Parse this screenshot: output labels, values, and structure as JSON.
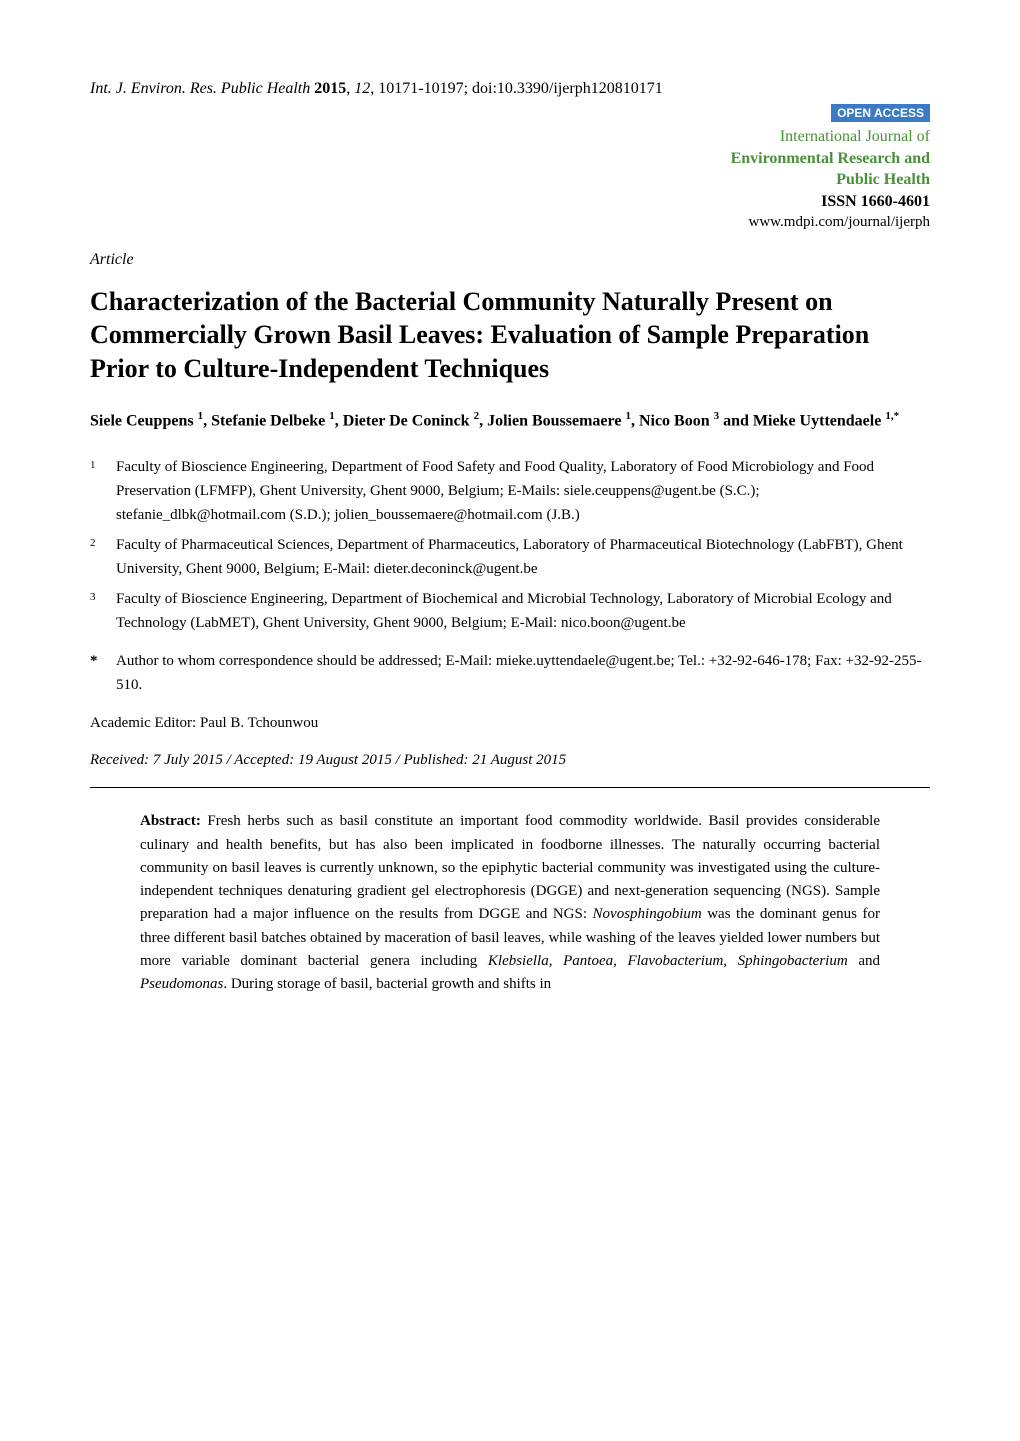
{
  "header": {
    "journal_abbrev": "Int. J. Environ. Res. Public Health",
    "year": "2015",
    "volume": "12",
    "pages": "10171-10197",
    "doi": "doi:10.3390/ijerph120810171"
  },
  "open_access_label": "OPEN ACCESS",
  "journal": {
    "line1": "International Journal of",
    "line2": "Environmental Research and",
    "line3": "Public Health",
    "issn": "ISSN 1660-4601",
    "url": "www.mdpi.com/journal/ijerph"
  },
  "article_label": "Article",
  "title": "Characterization of the Bacterial Community Naturally Present on Commercially Grown Basil Leaves: Evaluation of Sample Preparation Prior to Culture-Independent Techniques",
  "authors": {
    "a1_name": "Siele Ceuppens ",
    "a1_sup": "1",
    "a2_name": ", Stefanie Delbeke ",
    "a2_sup": "1",
    "a3_name": ", Dieter De Coninck ",
    "a3_sup": "2",
    "a4_name": ", Jolien Boussemaere ",
    "a4_sup": "1",
    "a5_name": ", Nico Boon ",
    "a5_sup": "3",
    "a6_prefix": " and ",
    "a6_name": "Mieke Uyttendaele ",
    "a6_sup": "1,*"
  },
  "affiliations": [
    {
      "num": "1",
      "text": "Faculty of Bioscience Engineering, Department of Food Safety and Food Quality, Laboratory of Food Microbiology and Food Preservation (LFMFP), Ghent University, Ghent 9000, Belgium; E-Mails: siele.ceuppens@ugent.be (S.C.); stefanie_dlbk@hotmail.com (S.D.); jolien_boussemaere@hotmail.com (J.B.)"
    },
    {
      "num": "2",
      "text": "Faculty of Pharmaceutical Sciences, Department of Pharmaceutics, Laboratory of Pharmaceutical Biotechnology (LabFBT), Ghent University, Ghent 9000, Belgium; E-Mail: dieter.deconinck@ugent.be"
    },
    {
      "num": "3",
      "text": "Faculty of Bioscience Engineering, Department of Biochemical and Microbial Technology, Laboratory of Microbial Ecology and Technology (LabMET), Ghent University, Ghent 9000, Belgium; E-Mail: nico.boon@ugent.be"
    }
  ],
  "correspondence": {
    "mark": "*",
    "text": "Author to whom correspondence should be addressed; E-Mail: mieke.uyttendaele@ugent.be; Tel.: +32-92-646-178; Fax: +32-92-255-510."
  },
  "editor": "Academic Editor: Paul B. Tchounwou",
  "dates": "Received: 7 July 2015 / Accepted: 19 August 2015 / Published: 21 August 2015",
  "abstract": {
    "label": "Abstract:",
    "p1": " Fresh herbs such as basil constitute an important food commodity worldwide. Basil provides considerable culinary and health benefits, but has also been implicated in foodborne illnesses. The naturally occurring bacterial community on basil leaves is currently unknown, so the epiphytic bacterial community was investigated using the culture-independent techniques denaturing gradient gel electrophoresis (DGGE) and next-generation sequencing (NGS). Sample preparation had a major influence on the results from DGGE and NGS: ",
    "italic1": "Novosphingobium",
    "p2": " was the dominant genus for three different basil batches obtained by maceration of basil leaves, while washing of the leaves yielded lower numbers but more variable dominant bacterial genera including ",
    "italic2": "Klebsiella, Pantoea, Flavobacterium, Sphingobacterium",
    "p3": " and ",
    "italic3": "Pseudomonas",
    "p4": ". During storage of basil, bacterial growth and shifts in"
  },
  "colors": {
    "open_access_bg": "#3b7bc4",
    "journal_green": "#4a8f3a",
    "text": "#000000",
    "background": "#ffffff"
  },
  "typography": {
    "body_font": "Times New Roman",
    "title_size_pt": 20,
    "body_size_pt": 12,
    "author_size_pt": 12
  }
}
